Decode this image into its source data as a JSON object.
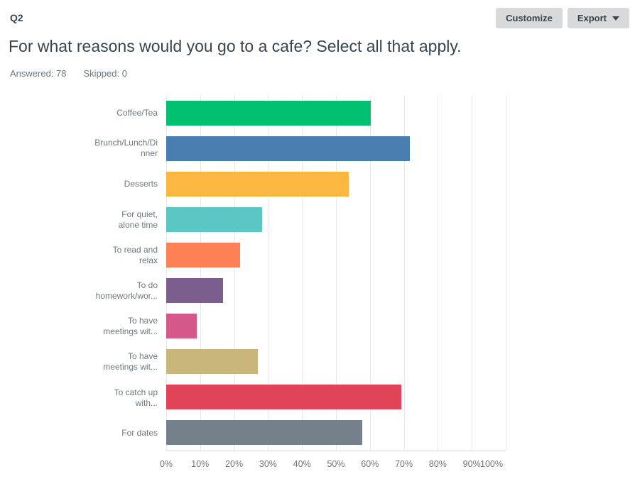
{
  "header": {
    "question_number": "Q2",
    "title": "For what reasons would you go to a cafe? Select all that apply.",
    "customize_label": "Customize",
    "export_label": "Export"
  },
  "stats": {
    "answered_label": "Answered:",
    "answered_value": "78",
    "skipped_label": "Skipped:",
    "skipped_value": "0"
  },
  "chart_data": {
    "type": "bar",
    "orientation": "horizontal",
    "title": "For what reasons would you go to a cafe? Select all that apply.",
    "categories": [
      "Coffee/Tea",
      "Brunch/Lunch/Dinner",
      "Desserts",
      "For quiet, alone time",
      "To read and relax",
      "To do homework/wor...",
      "To have meetings wit...",
      "To have meetings wit...",
      "To catch up with...",
      "For dates"
    ],
    "label_lines": [
      [
        "Coffee/Tea"
      ],
      [
        "Brunch/Lunch/Di",
        "nner"
      ],
      [
        "Desserts"
      ],
      [
        "For quiet,",
        "alone time"
      ],
      [
        "To read and",
        "relax"
      ],
      [
        "To do",
        "homework/wor..."
      ],
      [
        "To have",
        "meetings wit..."
      ],
      [
        "To have",
        "meetings wit..."
      ],
      [
        "To catch up",
        "with..."
      ],
      [
        "For dates"
      ]
    ],
    "values_percent": [
      60.26,
      71.79,
      53.85,
      28.21,
      21.79,
      16.67,
      8.97,
      26.92,
      69.23,
      57.69
    ],
    "bar_colors": [
      "#00BF6F",
      "#4A7DB2",
      "#FBB840",
      "#5BC6C3",
      "#FD8056",
      "#7B5E8E",
      "#D5588A",
      "#C8B67B",
      "#E14458",
      "#75818A"
    ],
    "x_ticks": [
      "0%",
      "10%",
      "20%",
      "30%",
      "40%",
      "50%",
      "60%",
      "70%",
      "80%",
      "90%",
      "100%"
    ],
    "xlim": [
      0,
      100
    ],
    "grid": true,
    "legend_position": "none",
    "gridline_color": "#E8E9EA",
    "axis_line_color": "#D5D7D9",
    "label_color": "#6B787F"
  }
}
